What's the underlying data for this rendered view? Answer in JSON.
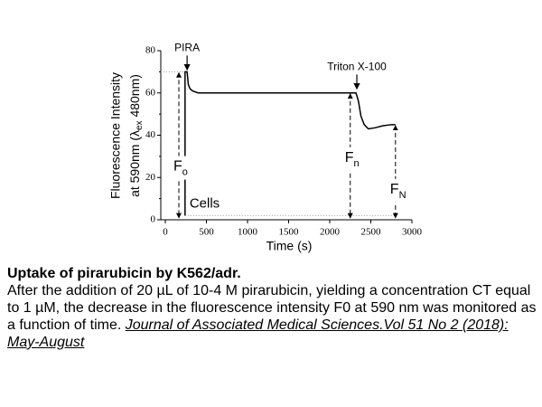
{
  "chart_data": {
    "type": "line",
    "xlabel": "Time (s)",
    "ylabel": [
      "Fluorescence Intensity",
      "at 590nm (λ",
      "ex",
      " 480nm)"
    ],
    "xlim": [
      0,
      3000
    ],
    "xticks": [
      0,
      500,
      1000,
      1500,
      2000,
      2500,
      3000
    ],
    "ylim": [
      0,
      80
    ],
    "yticks": [
      0,
      20,
      40,
      60,
      80
    ],
    "yminorticks": [
      10,
      30,
      50,
      70
    ],
    "series": [
      {
        "color": "#000000",
        "x": [
          240,
          240,
          265,
          280,
          300,
          330,
          400,
          800,
          1500,
          2200,
          2320,
          2350,
          2380,
          2420,
          2470,
          2550,
          2650,
          2750,
          2800
        ],
        "values": [
          2,
          70,
          70,
          64,
          62,
          61,
          60,
          60,
          60,
          60,
          60,
          56,
          49,
          45,
          43,
          43.5,
          44.5,
          45,
          45
        ]
      }
    ],
    "annotations": [
      {
        "text": "PIRA",
        "x": 265,
        "y": 70
      },
      {
        "text": "Triton X-100",
        "x": 2330,
        "y": 61
      }
    ],
    "markers": [
      {
        "text": "F",
        "sub": "o",
        "x": 165,
        "y": 70
      },
      {
        "text": "F",
        "sub": "n",
        "x": 2250,
        "y": 60
      },
      {
        "text": "F",
        "sub": "N",
        "x": 2800,
        "y": 45
      }
    ],
    "baseline_label": "Cells",
    "baseline": 2
  },
  "caption": {
    "title": "Uptake of pirarubicin by K562/adr.",
    "body": "After the addition of 20 µL of 10-4 M pirarubicin, yielding a concentration CT equal to 1 µM, the decrease in the fluorescence intensity F0 at 590 nm was monitored as a function of time.",
    "source": "Journal of Associated Medical Sciences.Vol 51 No 2 (2018): May-August"
  }
}
